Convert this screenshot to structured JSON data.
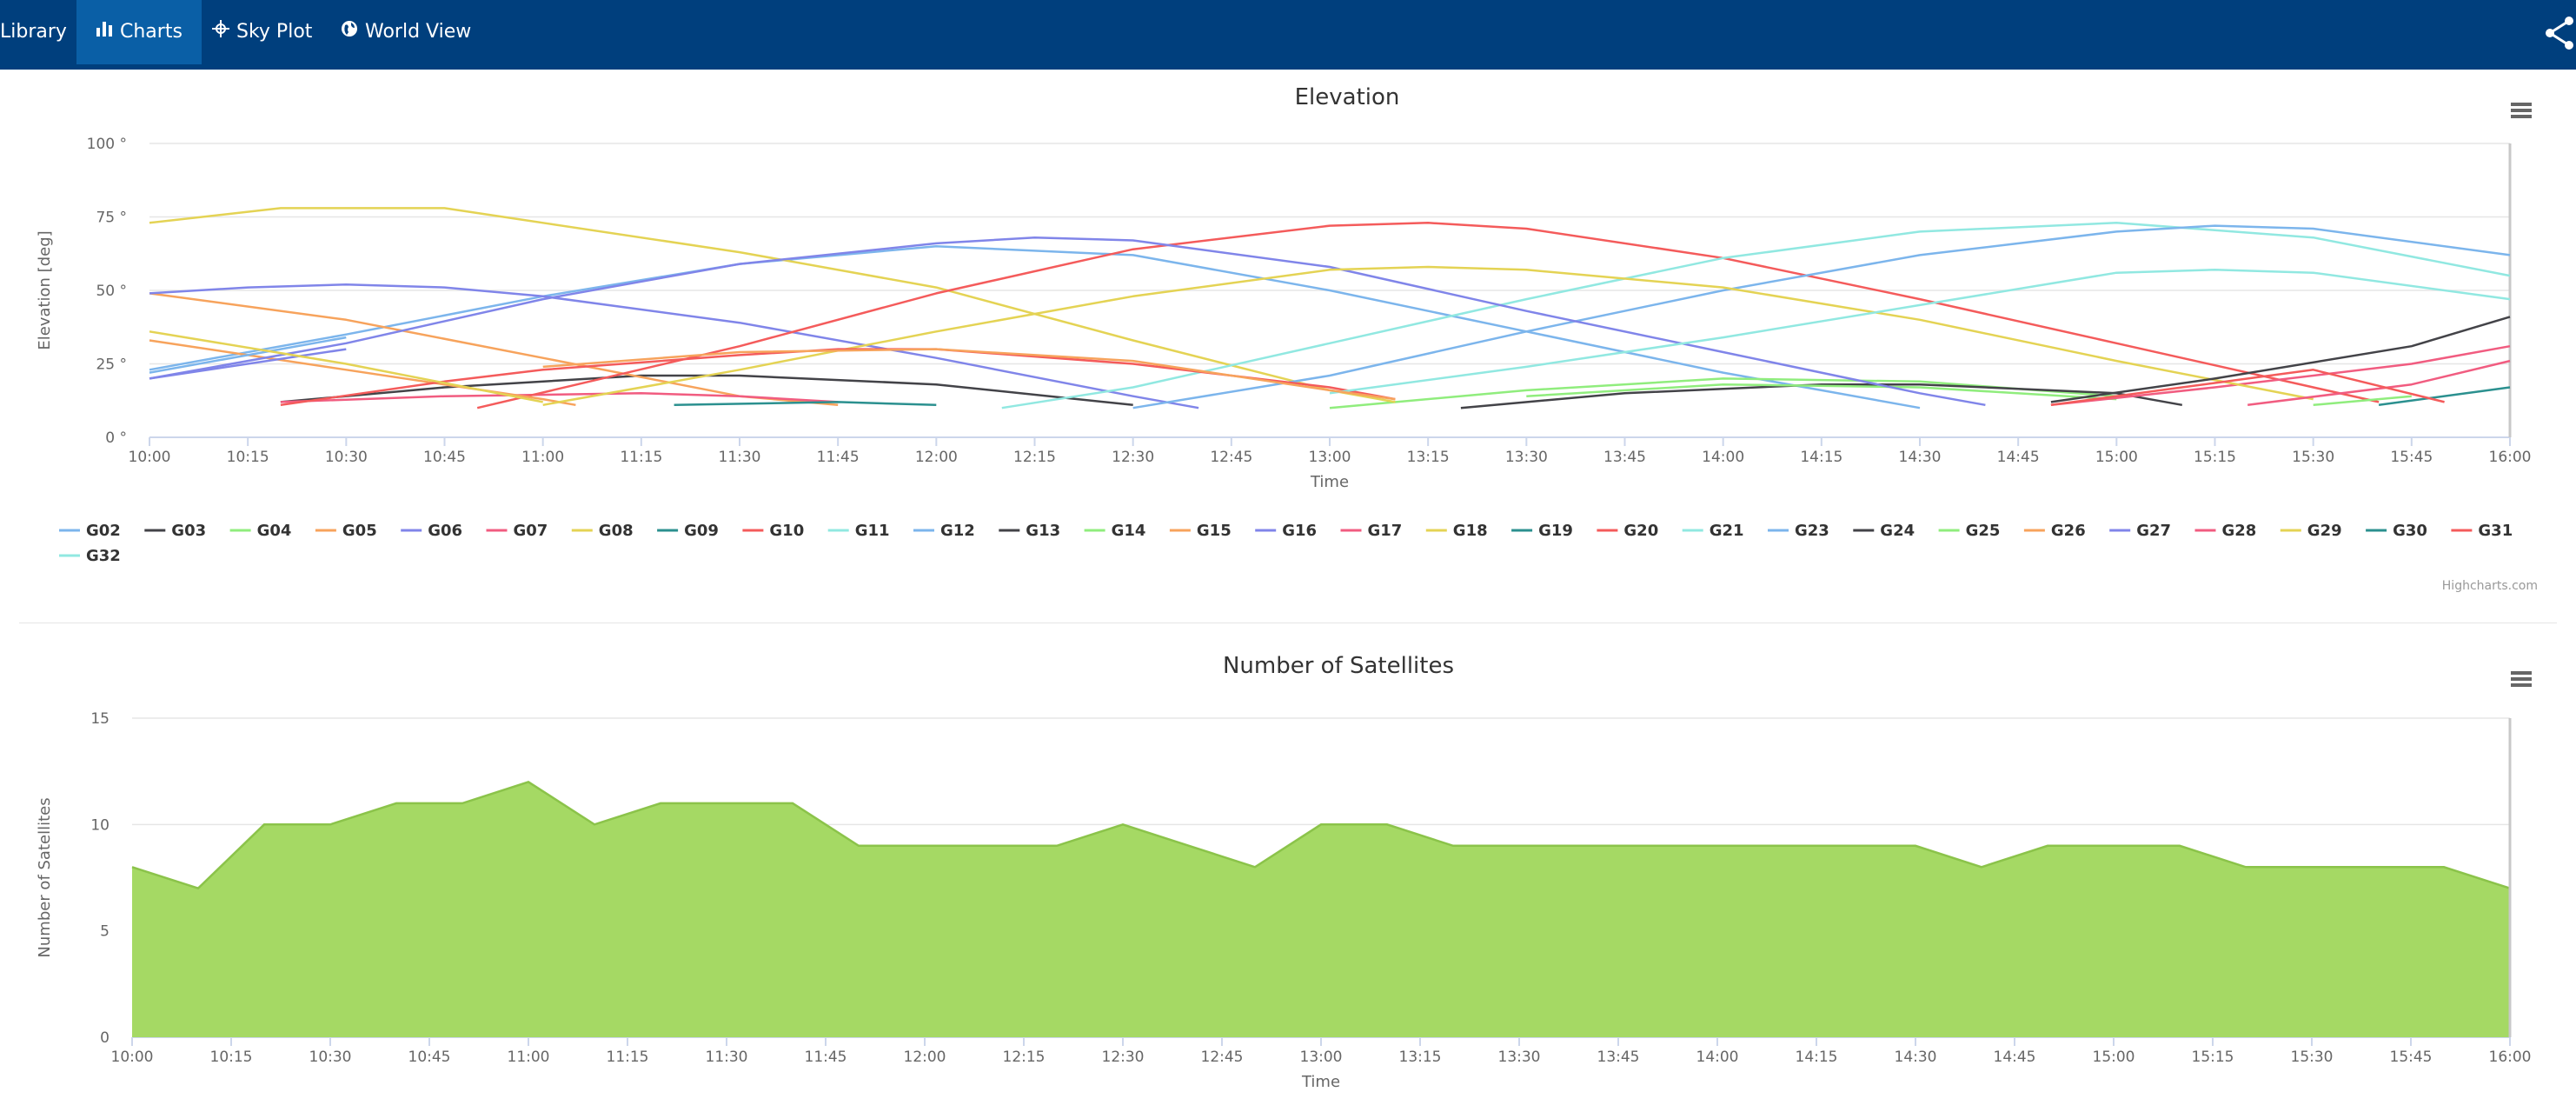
{
  "nav": {
    "items": [
      {
        "label": "Library",
        "icon": "library-icon",
        "active": false
      },
      {
        "label": "Charts",
        "icon": "bar-chart-icon",
        "active": true
      },
      {
        "label": "Sky Plot",
        "icon": "crosshair-icon",
        "active": false
      },
      {
        "label": "World View",
        "icon": "globe-icon",
        "active": false
      }
    ],
    "share_icon": "share-icon",
    "background": "#003f7d",
    "active_background": "#0a5fa6"
  },
  "credits": "Highcharts.com",
  "chart_data": [
    {
      "type": "line",
      "title": "Elevation",
      "xlabel": "Time",
      "ylabel": "Elevation [deg]",
      "xlim": [
        "10:00",
        "16:00"
      ],
      "ylim": [
        0,
        100
      ],
      "yticks": [
        "0 °",
        "25 °",
        "50 °",
        "75 °",
        "100 °"
      ],
      "xticks": [
        "10:00",
        "10:15",
        "10:30",
        "10:45",
        "11:00",
        "11:15",
        "11:30",
        "11:45",
        "12:00",
        "12:15",
        "12:30",
        "12:45",
        "13:00",
        "13:15",
        "13:30",
        "13:45",
        "14:00",
        "14:15",
        "14:30",
        "14:45",
        "15:00",
        "15:15",
        "15:30",
        "15:45",
        "16:00"
      ],
      "grid": true,
      "legend": "bottom",
      "series": [
        {
          "name": "G02",
          "color": "#7cb5ec",
          "points": [
            [
              "10:00",
              23
            ],
            [
              "10:30",
              35
            ],
            [
              "11:00",
              48
            ],
            [
              "11:30",
              59
            ],
            [
              "12:00",
              65
            ],
            [
              "12:30",
              62
            ],
            [
              "13:00",
              50
            ],
            [
              "13:30",
              36
            ],
            [
              "14:00",
              22
            ],
            [
              "14:30",
              10
            ]
          ]
        },
        {
          "name": "G03",
          "color": "#434348",
          "points": [
            [
              "10:20",
              12
            ],
            [
              "10:45",
              17
            ],
            [
              "11:15",
              21
            ],
            [
              "11:30",
              21
            ],
            [
              "12:00",
              18
            ],
            [
              "12:30",
              11
            ]
          ]
        },
        {
          "name": "G04",
          "color": "#90ed7d",
          "points": [
            [
              "13:00",
              10
            ],
            [
              "13:30",
              16
            ],
            [
              "14:00",
              20
            ],
            [
              "14:30",
              19
            ],
            [
              "15:00",
              14
            ]
          ]
        },
        {
          "name": "G05",
          "color": "#f7a35c",
          "points": [
            [
              "10:00",
              49
            ],
            [
              "10:30",
              40
            ],
            [
              "11:00",
              27
            ],
            [
              "11:30",
              14
            ],
            [
              "11:45",
              11
            ]
          ]
        },
        {
          "name": "G06",
          "color": "#8085e9",
          "points": [
            [
              "10:00",
              49
            ],
            [
              "10:15",
              51
            ],
            [
              "10:30",
              52
            ],
            [
              "10:45",
              51
            ],
            [
              "11:00",
              48
            ],
            [
              "11:30",
              39
            ],
            [
              "12:00",
              27
            ],
            [
              "12:30",
              14
            ],
            [
              "12:40",
              10
            ]
          ]
        },
        {
          "name": "G07",
          "color": "#f15c80",
          "points": [
            [
              "10:20",
              12
            ],
            [
              "10:45",
              14
            ],
            [
              "11:15",
              15
            ],
            [
              "11:30",
              14
            ],
            [
              "11:45",
              12
            ]
          ]
        },
        {
          "name": "G08",
          "color": "#e4d354",
          "points": [
            [
              "10:00",
              73
            ],
            [
              "10:20",
              78
            ],
            [
              "10:30",
              78
            ],
            [
              "10:45",
              78
            ],
            [
              "11:00",
              73
            ],
            [
              "11:30",
              63
            ],
            [
              "12:00",
              51
            ],
            [
              "12:30",
              33
            ],
            [
              "13:00",
              16
            ],
            [
              "13:10",
              12
            ]
          ]
        },
        {
          "name": "G09",
          "color": "#2b908f",
          "points": [
            [
              "11:20",
              11
            ],
            [
              "11:45",
              12
            ],
            [
              "12:00",
              11
            ]
          ]
        },
        {
          "name": "G10",
          "color": "#f45b5b",
          "points": [
            [
              "10:50",
              10
            ],
            [
              "11:30",
              31
            ],
            [
              "12:00",
              49
            ],
            [
              "12:30",
              64
            ],
            [
              "13:00",
              72
            ],
            [
              "13:15",
              73
            ],
            [
              "13:30",
              71
            ],
            [
              "14:00",
              61
            ],
            [
              "14:30",
              47
            ],
            [
              "15:00",
              32
            ],
            [
              "15:30",
              17
            ],
            [
              "15:40",
              12
            ]
          ]
        },
        {
          "name": "G11",
          "color": "#91e8e1",
          "points": [
            [
              "12:10",
              10
            ],
            [
              "12:30",
              17
            ],
            [
              "13:00",
              32
            ],
            [
              "13:30",
              47
            ],
            [
              "14:00",
              61
            ],
            [
              "14:30",
              70
            ],
            [
              "15:00",
              73
            ],
            [
              "15:30",
              68
            ],
            [
              "16:00",
              55
            ]
          ]
        },
        {
          "name": "G12",
          "color": "#7cb5ec",
          "points": [
            [
              "12:30",
              10
            ],
            [
              "13:00",
              21
            ],
            [
              "13:30",
              36
            ],
            [
              "14:00",
              50
            ],
            [
              "14:30",
              62
            ],
            [
              "15:00",
              70
            ],
            [
              "15:15",
              72
            ],
            [
              "15:30",
              71
            ],
            [
              "16:00",
              62
            ]
          ]
        },
        {
          "name": "G13",
          "color": "#434348",
          "points": [
            [
              "13:20",
              10
            ],
            [
              "13:45",
              15
            ],
            [
              "14:15",
              18
            ],
            [
              "14:30",
              18
            ],
            [
              "15:00",
              15
            ],
            [
              "15:10",
              11
            ]
          ]
        },
        {
          "name": "G14",
          "color": "#90ed7d",
          "points": [
            [
              "13:30",
              14
            ],
            [
              "14:00",
              18
            ],
            [
              "14:30",
              17
            ],
            [
              "15:00",
              13
            ]
          ]
        },
        {
          "name": "G15",
          "color": "#f7a35c",
          "points": [
            [
              "10:00",
              33
            ],
            [
              "10:30",
              23
            ],
            [
              "11:00",
              13
            ],
            [
              "11:05",
              11
            ]
          ]
        },
        {
          "name": "G16",
          "color": "#8085e9",
          "points": [
            [
              "10:00",
              20
            ],
            [
              "10:30",
              32
            ],
            [
              "11:00",
              47
            ],
            [
              "11:30",
              59
            ],
            [
              "12:00",
              66
            ],
            [
              "12:15",
              68
            ],
            [
              "12:30",
              67
            ],
            [
              "13:00",
              58
            ],
            [
              "13:30",
              43
            ],
            [
              "14:00",
              29
            ],
            [
              "14:30",
              15
            ],
            [
              "14:40",
              11
            ]
          ]
        },
        {
          "name": "G17",
          "color": "#f15c80",
          "points": [
            [
              "14:50",
              11
            ],
            [
              "15:15",
              17
            ],
            [
              "15:45",
              25
            ],
            [
              "16:00",
              31
            ]
          ]
        },
        {
          "name": "G18",
          "color": "#e4d354",
          "points": [
            [
              "11:00",
              11
            ],
            [
              "11:30",
              23
            ],
            [
              "12:00",
              36
            ],
            [
              "12:30",
              48
            ],
            [
              "13:00",
              57
            ],
            [
              "13:15",
              58
            ],
            [
              "13:30",
              57
            ],
            [
              "14:00",
              51
            ],
            [
              "14:30",
              40
            ],
            [
              "15:00",
              26
            ],
            [
              "15:30",
              13
            ]
          ]
        },
        {
          "name": "G19",
          "color": "#2b908f",
          "points": [
            [
              "15:40",
              11
            ],
            [
              "16:00",
              17
            ]
          ]
        },
        {
          "name": "G20",
          "color": "#f45b5b",
          "points": [
            [
              "10:20",
              11
            ],
            [
              "10:45",
              19
            ],
            [
              "11:00",
              23
            ],
            [
              "11:30",
              28
            ],
            [
              "11:45",
              30
            ],
            [
              "12:00",
              30
            ],
            [
              "12:30",
              25
            ],
            [
              "13:00",
              17
            ],
            [
              "13:10",
              13
            ]
          ]
        },
        {
          "name": "G21",
          "color": "#91e8e1",
          "points": [
            [
              "13:00",
              15
            ],
            [
              "13:30",
              24
            ],
            [
              "14:00",
              34
            ],
            [
              "14:30",
              45
            ],
            [
              "15:00",
              56
            ],
            [
              "15:15",
              57
            ],
            [
              "15:30",
              56
            ],
            [
              "16:00",
              47
            ]
          ]
        },
        {
          "name": "G23",
          "color": "#7cb5ec",
          "points": [
            [
              "10:00",
              22
            ],
            [
              "10:15",
              28
            ],
            [
              "10:30",
              34
            ]
          ]
        },
        {
          "name": "G24",
          "color": "#434348",
          "points": [
            [
              "14:50",
              12
            ],
            [
              "15:15",
              20
            ],
            [
              "15:45",
              31
            ],
            [
              "16:00",
              41
            ]
          ]
        },
        {
          "name": "G25",
          "color": "#90ed7d",
          "points": [
            [
              "15:30",
              11
            ],
            [
              "15:45",
              14
            ]
          ]
        },
        {
          "name": "G26",
          "color": "#f7a35c",
          "points": [
            [
              "11:00",
              24
            ],
            [
              "11:30",
              29
            ],
            [
              "12:00",
              30
            ],
            [
              "12:30",
              26
            ],
            [
              "13:00",
              16
            ],
            [
              "13:10",
              13
            ]
          ]
        },
        {
          "name": "G27",
          "color": "#8085e9",
          "points": [
            [
              "10:00",
              20
            ],
            [
              "10:30",
              30
            ]
          ]
        },
        {
          "name": "G28",
          "color": "#f15c80",
          "points": [
            [
              "15:20",
              11
            ],
            [
              "15:45",
              18
            ],
            [
              "16:00",
              26
            ]
          ]
        },
        {
          "name": "G29",
          "color": "#e4d354",
          "points": [
            [
              "10:00",
              36
            ],
            [
              "10:30",
              25
            ],
            [
              "11:00",
              12
            ]
          ]
        },
        {
          "name": "G30",
          "color": "#2b908f",
          "points": []
        },
        {
          "name": "G31",
          "color": "#f45b5b",
          "points": [
            [
              "14:50",
              11
            ],
            [
              "15:10",
              17
            ],
            [
              "15:30",
              23
            ],
            [
              "15:50",
              12
            ]
          ]
        },
        {
          "name": "G32",
          "color": "#91e8e1",
          "points": []
        }
      ]
    },
    {
      "type": "area",
      "title": "Number of Satellites",
      "xlabel": "Time",
      "ylabel": "Number of Satellites",
      "xlim": [
        "10:00",
        "16:00"
      ],
      "ylim": [
        0,
        15
      ],
      "yticks": [
        "0",
        "5",
        "10",
        "15"
      ],
      "xticks": [
        "10:00",
        "10:15",
        "10:30",
        "10:45",
        "11:00",
        "11:15",
        "11:30",
        "11:45",
        "12:00",
        "12:15",
        "12:30",
        "12:45",
        "13:00",
        "13:15",
        "13:30",
        "13:45",
        "14:00",
        "14:15",
        "14:30",
        "14:45",
        "15:00",
        "15:15",
        "15:30",
        "15:45",
        "16:00"
      ],
      "grid": true,
      "color": "#a5d964",
      "line_color": "#8bc34a",
      "x": [
        "10:00",
        "10:10",
        "10:20",
        "10:30",
        "10:40",
        "10:50",
        "11:00",
        "11:10",
        "11:20",
        "11:30",
        "11:40",
        "11:50",
        "12:00",
        "12:10",
        "12:20",
        "12:30",
        "12:40",
        "12:50",
        "13:00",
        "13:10",
        "13:20",
        "13:30",
        "13:40",
        "13:50",
        "14:00",
        "14:10",
        "14:20",
        "14:30",
        "14:40",
        "14:50",
        "15:00",
        "15:10",
        "15:20",
        "15:30",
        "15:40",
        "15:50",
        "16:00"
      ],
      "values": [
        8,
        7,
        10,
        10,
        11,
        11,
        12,
        10,
        11,
        11,
        11,
        9,
        9,
        9,
        9,
        10,
        9,
        8,
        10,
        10,
        9,
        9,
        9,
        9,
        9,
        9,
        9,
        9,
        8,
        9,
        9,
        9,
        8,
        8,
        8,
        8,
        7
      ]
    }
  ]
}
